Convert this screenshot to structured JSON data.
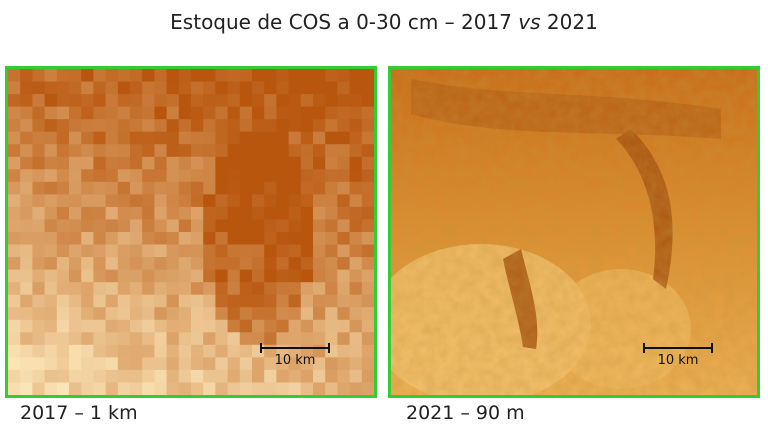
{
  "title": {
    "pre": "Estoque de COS a 0-30 cm – 2017 ",
    "italic": "vs",
    "post": " 2021"
  },
  "panels": [
    {
      "caption": "2017 – 1 km",
      "scale_label": "10 km"
    },
    {
      "caption": "2021 – 90 m",
      "scale_label": "10 km"
    }
  ],
  "colors": {
    "frame": "#33cc33",
    "dark": "#b8560e",
    "mid": "#e08a2a",
    "light": "#fbe4b6"
  }
}
